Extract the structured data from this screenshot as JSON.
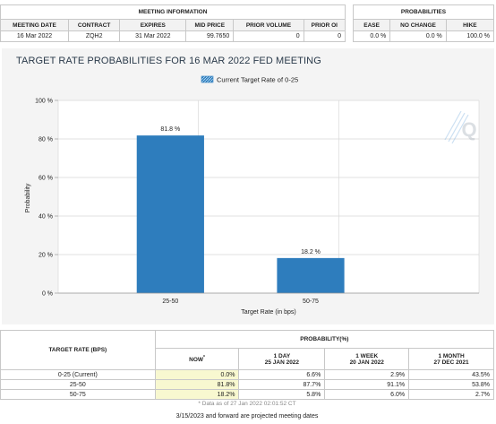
{
  "meeting_info": {
    "header": "MEETING INFORMATION",
    "columns": [
      "MEETING DATE",
      "CONTRACT",
      "EXPIRES",
      "MID PRICE",
      "PRIOR VOLUME",
      "PRIOR OI"
    ],
    "row": [
      "16 Mar 2022",
      "ZQH2",
      "31 Mar 2022",
      "99.7650",
      "0",
      "0"
    ]
  },
  "probabilities": {
    "header": "PROBABILITIES",
    "columns": [
      "EASE",
      "NO CHANGE",
      "HIKE"
    ],
    "row": [
      "0.0 %",
      "0.0 %",
      "100.0 %"
    ]
  },
  "chart_data": {
    "type": "bar",
    "title": "TARGET RATE PROBABILITIES FOR 16 MAR 2022 FED MEETING",
    "legend": "Current Target Rate of 0-25",
    "xlabel": "Target Rate (in bps)",
    "ylabel": "Probability",
    "categories": [
      "25-50",
      "50-75"
    ],
    "values": [
      81.8,
      18.2
    ],
    "value_labels": [
      "81.8 %",
      "18.2 %"
    ],
    "ylim": [
      0,
      100
    ],
    "yticks": [
      "0 %",
      "20 %",
      "40 %",
      "60 %",
      "80 %",
      "100 %"
    ],
    "ytick_values": [
      0,
      20,
      40,
      60,
      80,
      100
    ],
    "bar_color": "#2e7dbd",
    "grid": true,
    "watermark": "Q"
  },
  "bottom_table": {
    "rate_header": "TARGET RATE (BPS)",
    "prob_header": "PROBABILITY(%)",
    "cols": [
      {
        "l1": "NOW",
        "l2": ""
      },
      {
        "l1": "1 DAY",
        "l2": "25 JAN 2022"
      },
      {
        "l1": "1 WEEK",
        "l2": "20 JAN 2022"
      },
      {
        "l1": "1 MONTH",
        "l2": "27 DEC 2021"
      }
    ],
    "now_marker": "*",
    "rows": [
      [
        "0-25 (Current)",
        "0.0%",
        "6.6%",
        "2.9%",
        "43.5%"
      ],
      [
        "25-50",
        "81.8%",
        "87.7%",
        "91.1%",
        "53.8%"
      ],
      [
        "50-75",
        "18.2%",
        "5.8%",
        "6.0%",
        "2.7%"
      ]
    ],
    "note": "* Data as of 27 Jan 2022 02:01:52 CT"
  },
  "footer": "3/15/2023 and forward are projected meeting dates"
}
